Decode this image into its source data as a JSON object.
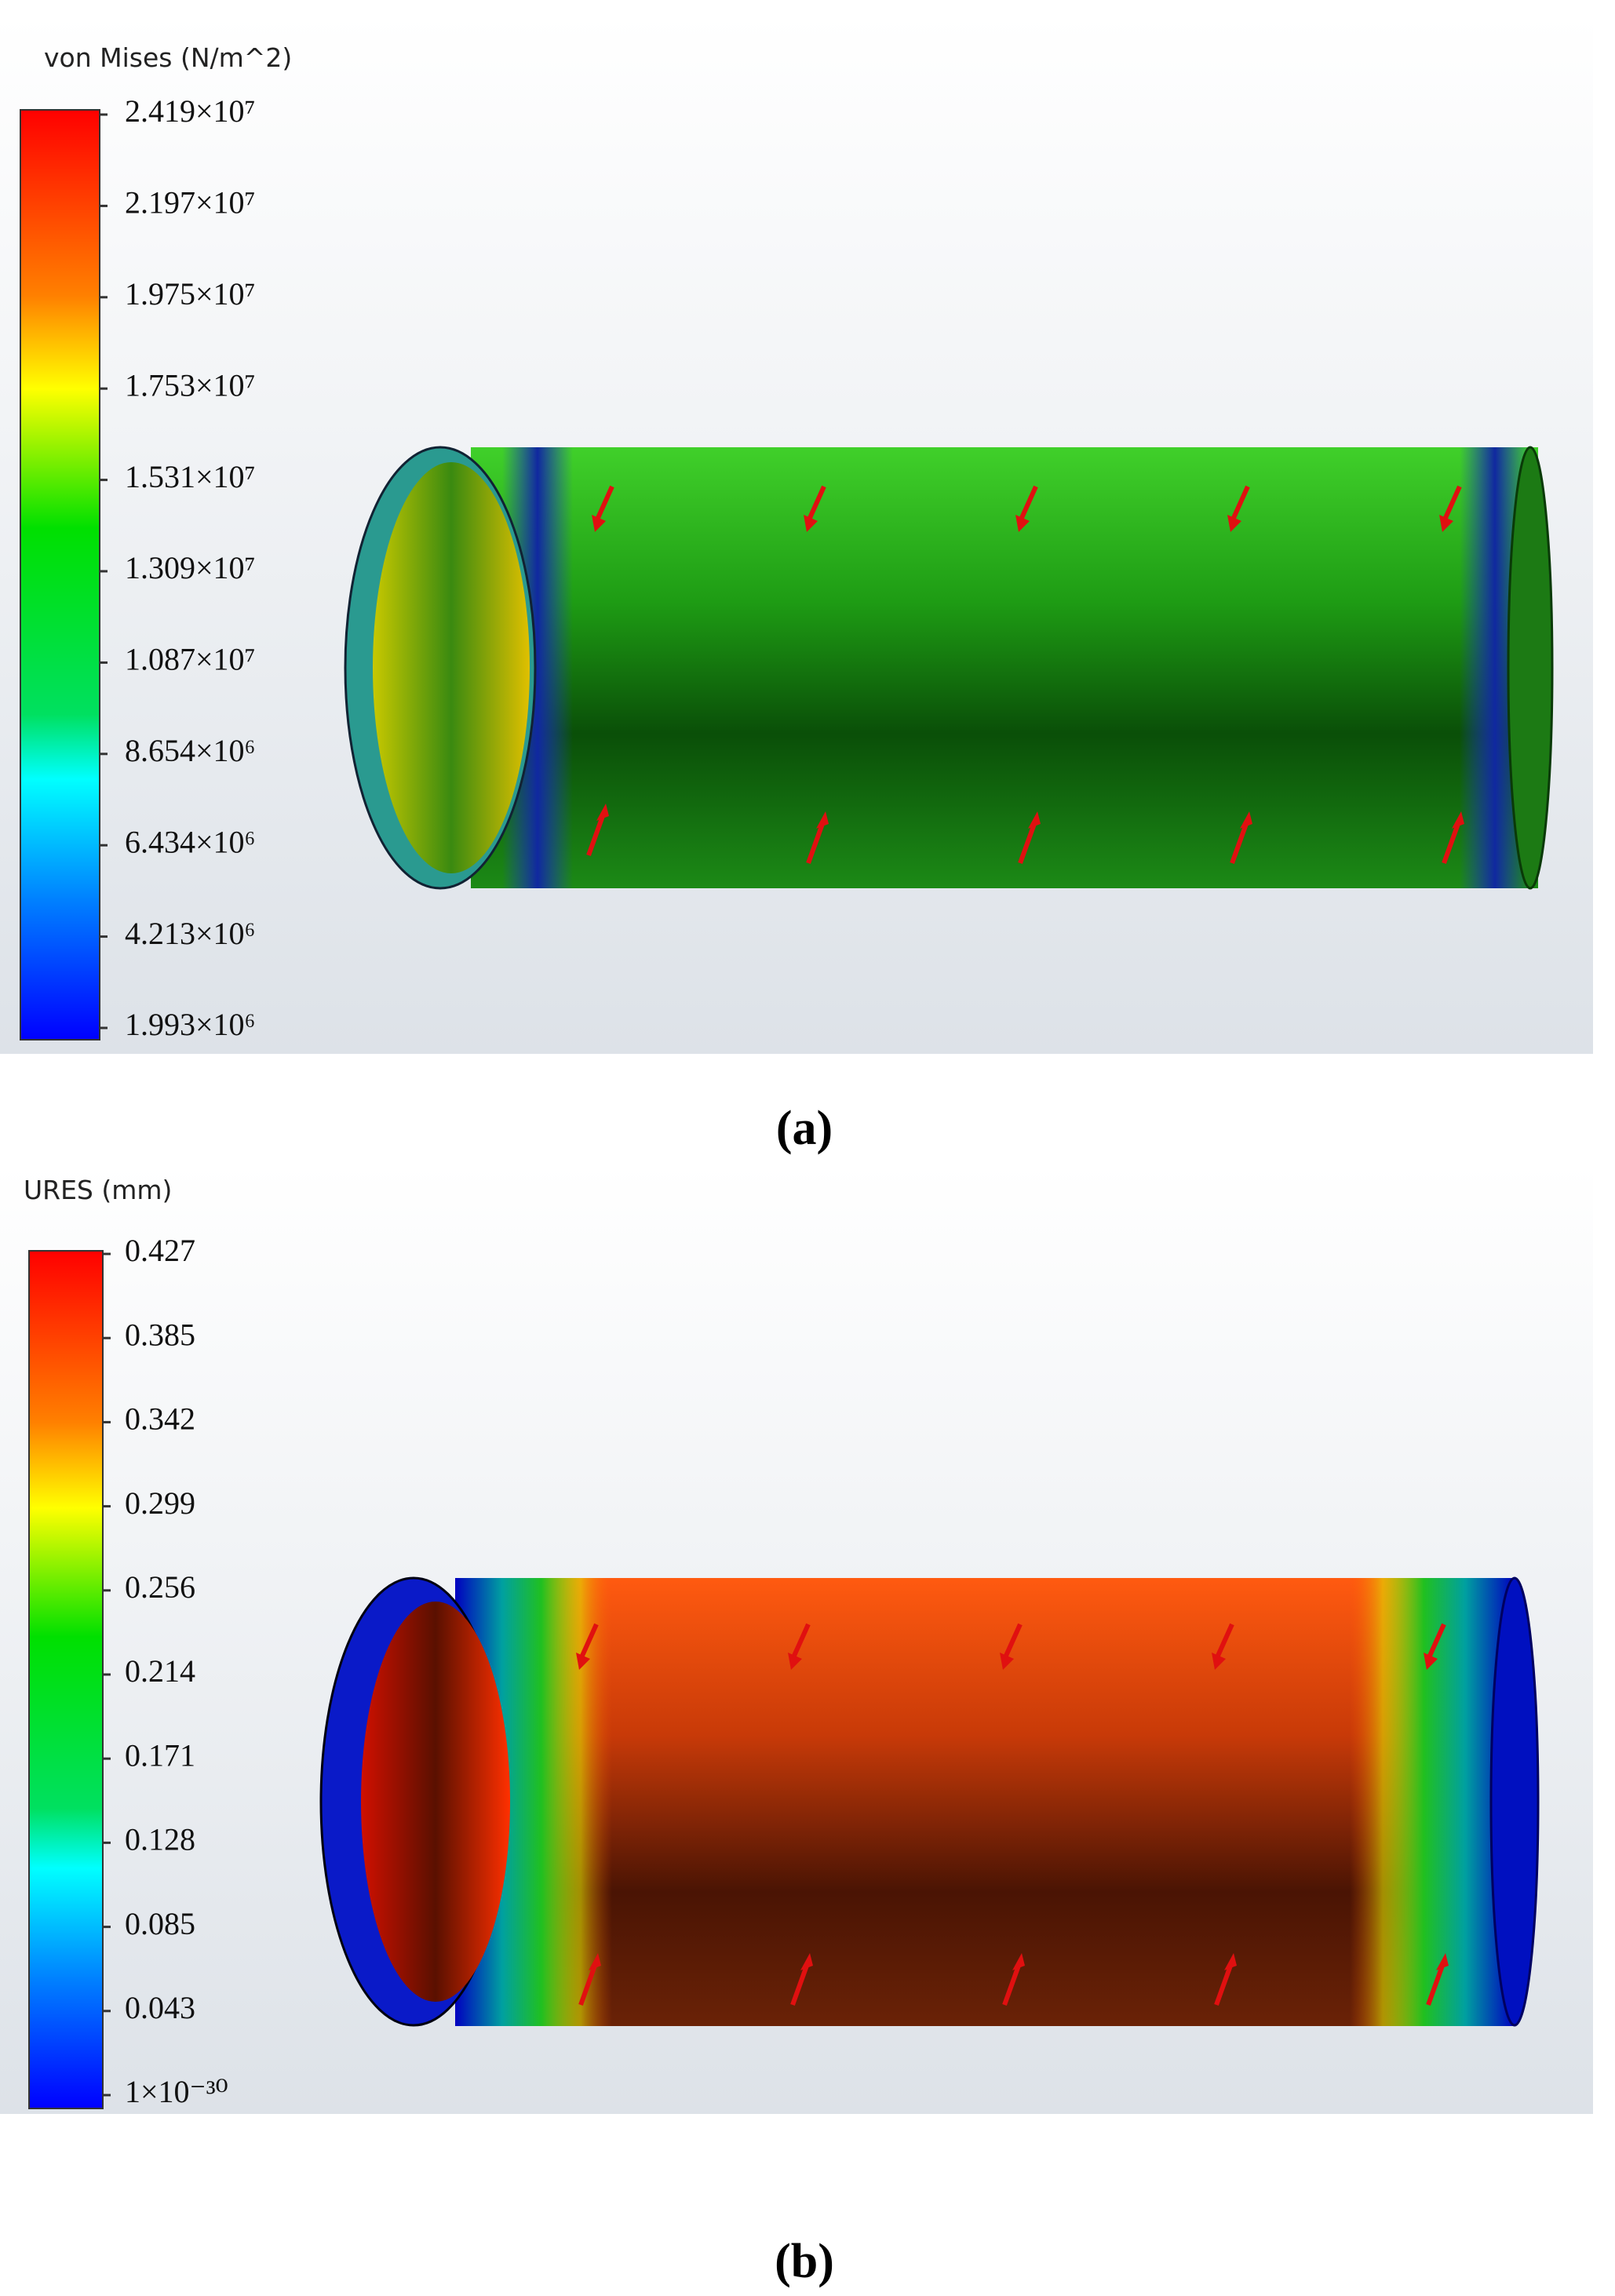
{
  "panels": [
    {
      "legend_title": "von Mises (N/m^2)",
      "legend_labels": [
        "2.419×10⁷",
        "2.197×10⁷",
        "1.975×10⁷",
        "1.753×10⁷",
        "1.531×10⁷",
        "1.309×10⁷",
        "1.087×10⁷",
        "8.654×10⁶",
        "6.434×10⁶",
        "4.213×10⁶",
        "1.993×10⁶"
      ],
      "caption": "(a)"
    },
    {
      "legend_title": "URES (mm)",
      "legend_labels": [
        "0.427",
        "0.385",
        "0.342",
        "0.299",
        "0.256",
        "0.214",
        "0.171",
        "0.128",
        "0.085",
        "0.043",
        "1×10⁻³⁰"
      ],
      "caption": "(b)"
    }
  ]
}
